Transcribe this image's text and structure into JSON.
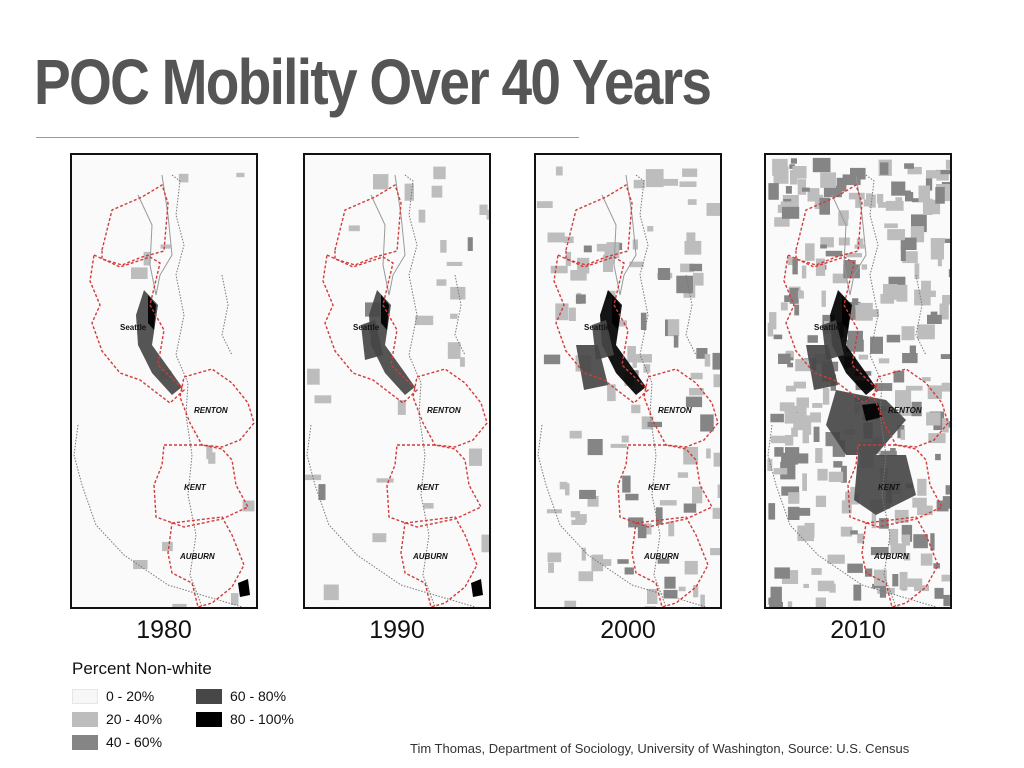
{
  "title": "POC Mobility Over 40 Years",
  "city_labels": {
    "seattle": "Seattle",
    "renton": "RENTON",
    "kent": "KENT",
    "auburn": "AUBURN"
  },
  "maps": [
    {
      "year": "1980",
      "coverage": 0.15
    },
    {
      "year": "1990",
      "coverage": 0.25
    },
    {
      "year": "2000",
      "coverage": 0.55
    },
    {
      "year": "2010",
      "coverage": 0.85
    }
  ],
  "legend": {
    "title": "Percent Non-white",
    "items": [
      {
        "label": "0 - 20%",
        "color": "#f7f7f7"
      },
      {
        "label": "20 - 40%",
        "color": "#bdbdbd"
      },
      {
        "label": "40 - 60%",
        "color": "#858585"
      },
      {
        "label": "60 - 80%",
        "color": "#474747"
      },
      {
        "label": "80 - 100%",
        "color": "#000000"
      }
    ]
  },
  "credit": "Tim Thomas, Department of Sociology, University of Washington, Source: U.S. Census",
  "colors": {
    "boundary": "#d23b3b",
    "water_line": "#777777",
    "title": "#555555"
  }
}
